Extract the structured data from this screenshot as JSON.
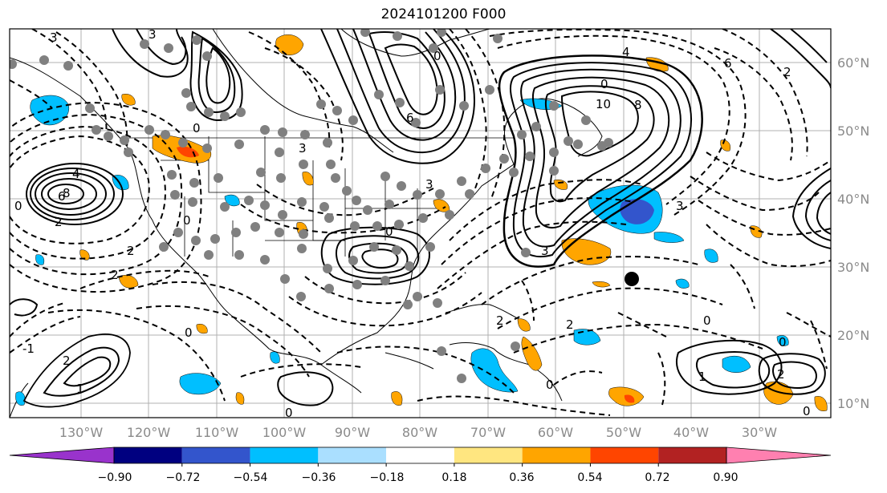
{
  "title": "2024101200 F000",
  "lon_labels": [
    "130°W",
    "120°W",
    "110°W",
    "100°W",
    "90°W",
    "80°W",
    "70°W",
    "60°W",
    "50°W",
    "40°W",
    "30°W"
  ],
  "lat_labels": [
    "60°N",
    "50°N",
    "40°N",
    "30°N",
    "20°N",
    "10°N"
  ],
  "colorbar": {
    "colors": [
      "#9933cc",
      "#000080",
      "#3355cc",
      "#00bfff",
      "#aadfff",
      "#ffffff",
      "#ffe680",
      "#ffa500",
      "#ff4500",
      "#b22222",
      "#ff80b0"
    ],
    "tick_labels": [
      "−0.90",
      "−0.72",
      "−0.54",
      "−0.36",
      "−0.18",
      "0.18",
      "0.36",
      "0.54",
      "0.72",
      "0.90"
    ]
  },
  "contour_labels": [
    "3",
    "3",
    "0",
    "3",
    "0",
    "6",
    "3",
    "0",
    "10",
    "8",
    "6",
    "4",
    "0",
    "3",
    "2",
    "0",
    "0",
    "2",
    "2",
    "0",
    "0",
    "0",
    "2",
    "1",
    "2",
    "4",
    "6",
    "8",
    "0",
    "1",
    "-1",
    "2",
    "0",
    "3",
    "0",
    "2",
    "2"
  ],
  "colors": {
    "observations": "#808080",
    "marker": "#000000",
    "gridline": "#b0b0b0"
  }
}
